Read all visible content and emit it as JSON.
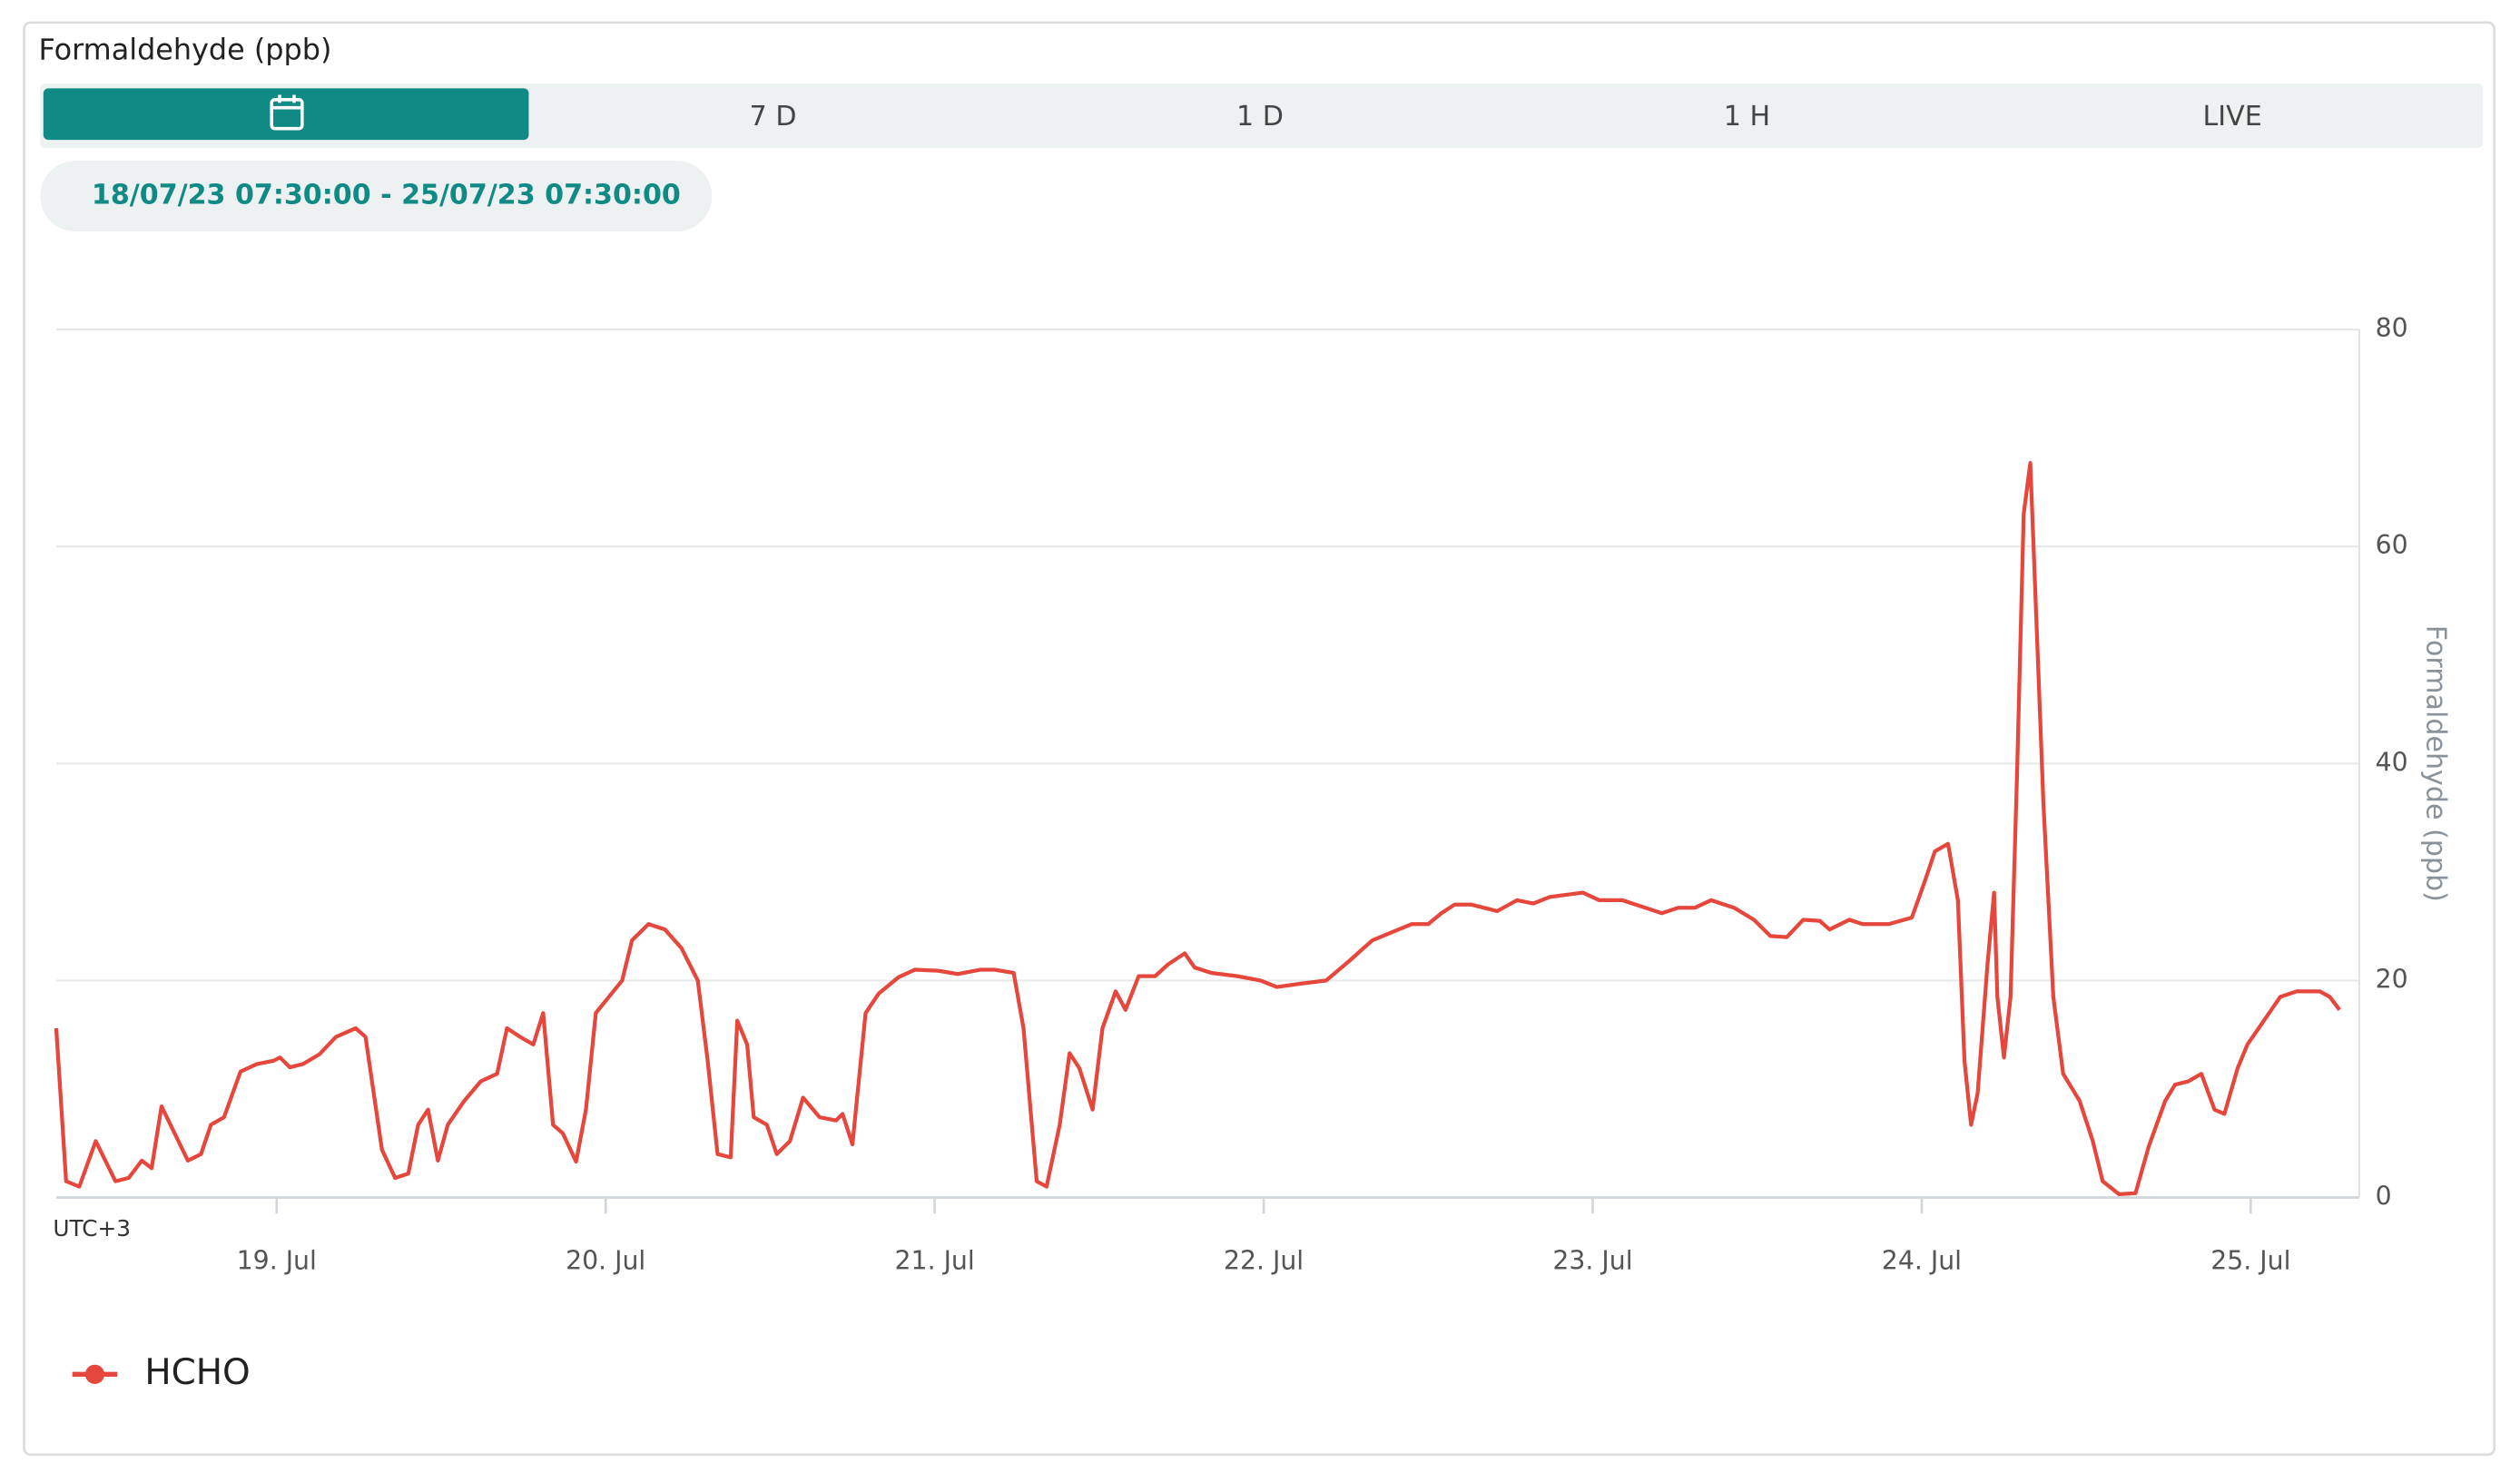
{
  "header": {
    "title": "Formaldehyde (ppb)"
  },
  "tabs": [
    "7 D",
    "1 D",
    "1 H",
    "LIVE"
  ],
  "date_range": "18/07/23 07:30:00 - 25/07/23 07:30:00",
  "chart_data": {
    "type": "line",
    "x_note_label": "UTC+3",
    "y_label": "Formaldehyde (ppb)",
    "x": [
      18.33,
      18.36,
      18.4,
      18.45,
      18.51,
      18.55,
      18.59,
      18.62,
      18.65,
      18.69,
      18.73,
      18.77,
      18.8,
      18.84,
      18.89,
      18.94,
      18.99,
      19.01,
      19.04,
      19.08,
      19.13,
      19.18,
      19.24,
      19.27,
      19.32,
      19.36,
      19.4,
      19.43,
      19.46,
      19.49,
      19.52,
      19.57,
      19.62,
      19.67,
      19.7,
      19.74,
      19.78,
      19.81,
      19.84,
      19.87,
      19.91,
      19.94,
      19.97,
      20.01,
      20.05,
      20.08,
      20.13,
      20.18,
      20.23,
      20.28,
      20.31,
      20.34,
      20.38,
      20.4,
      20.43,
      20.45,
      20.49,
      20.52,
      20.56,
      20.6,
      20.65,
      20.7,
      20.72,
      20.75,
      20.79,
      20.83,
      20.89,
      20.94,
      21.01,
      21.07,
      21.14,
      21.18,
      21.24,
      21.27,
      21.31,
      21.34,
      21.38,
      21.41,
      21.44,
      21.48,
      21.51,
      21.55,
      21.58,
      21.62,
      21.67,
      21.71,
      21.76,
      21.79,
      21.84,
      21.92,
      21.99,
      22.04,
      22.11,
      22.19,
      22.26,
      22.33,
      22.41,
      22.45,
      22.5,
      22.54,
      22.58,
      22.63,
      22.71,
      22.77,
      22.82,
      22.87,
      22.92,
      22.97,
      23.02,
      23.09,
      23.16,
      23.21,
      23.26,
      23.31,
      23.36,
      23.43,
      23.49,
      23.54,
      23.59,
      23.64,
      23.69,
      23.72,
      23.78,
      23.82,
      23.9,
      23.97,
      24.01,
      24.04,
      24.08,
      24.11,
      24.13,
      24.15,
      24.17,
      24.2,
      24.22,
      24.23,
      24.25,
      24.27,
      24.29,
      24.31,
      24.33,
      24.34,
      24.37,
      24.4,
      24.43,
      24.48,
      24.52,
      24.55,
      24.6,
      24.65,
      24.69,
      24.74,
      24.77,
      24.81,
      24.85,
      24.89,
      24.92,
      24.96,
      24.99,
      25.04,
      25.09,
      25.14,
      25.21,
      25.24,
      25.27
    ],
    "series": [
      {
        "name": "HCHO",
        "color": "#e5473c",
        "values": [
          15.6,
          1.5,
          1.0,
          5.2,
          1.5,
          1.8,
          3.4,
          2.7,
          8.4,
          5.9,
          3.4,
          4.0,
          6.7,
          7.4,
          11.6,
          12.3,
          12.6,
          12.9,
          12.0,
          12.3,
          13.2,
          14.8,
          15.6,
          14.8,
          4.4,
          1.8,
          2.2,
          6.7,
          8.1,
          3.4,
          6.7,
          8.9,
          10.7,
          11.4,
          15.6,
          14.8,
          14.1,
          17.0,
          6.7,
          5.9,
          3.3,
          8.1,
          17.0,
          18.5,
          20.0,
          23.7,
          25.2,
          24.7,
          23.0,
          20.0,
          12.6,
          4.0,
          3.7,
          16.3,
          14.1,
          7.4,
          6.7,
          4.0,
          5.2,
          9.2,
          7.4,
          7.1,
          7.7,
          4.9,
          17.0,
          18.8,
          20.3,
          21.0,
          20.9,
          20.6,
          21.0,
          21.0,
          20.7,
          15.6,
          1.5,
          1.0,
          6.7,
          13.3,
          11.9,
          8.1,
          15.6,
          19.0,
          17.3,
          20.4,
          20.4,
          21.5,
          22.5,
          21.2,
          20.7,
          20.4,
          20.0,
          19.4,
          19.7,
          20.0,
          21.8,
          23.7,
          24.7,
          25.2,
          25.2,
          26.2,
          27.0,
          27.0,
          26.4,
          27.4,
          27.1,
          27.7,
          27.9,
          28.1,
          27.4,
          27.4,
          26.7,
          26.2,
          26.7,
          26.7,
          27.4,
          26.7,
          25.6,
          24.1,
          24.0,
          25.6,
          25.5,
          24.7,
          25.6,
          25.2,
          25.2,
          25.8,
          29.2,
          31.9,
          32.6,
          27.4,
          12.6,
          6.7,
          9.6,
          21.5,
          28.1,
          18.5,
          12.9,
          18.5,
          39.3,
          63.0,
          67.7,
          60.0,
          36.3,
          18.5,
          11.4,
          8.9,
          5.2,
          1.5,
          0.3,
          0.4,
          4.7,
          8.9,
          10.4,
          10.7,
          11.4,
          8.1,
          7.7,
          11.9,
          14.1,
          16.3,
          18.5,
          19.0,
          19.0,
          18.5,
          17.3
        ]
      }
    ],
    "xlim": [
      18.33,
      25.33
    ],
    "xticks": [
      {
        "value": 19,
        "label": "19. Jul"
      },
      {
        "value": 20,
        "label": "20. Jul"
      },
      {
        "value": 21,
        "label": "21. Jul"
      },
      {
        "value": 22,
        "label": "22. Jul"
      },
      {
        "value": 23,
        "label": "23. Jul"
      },
      {
        "value": 24,
        "label": "24. Jul"
      },
      {
        "value": 25,
        "label": "25. Jul"
      }
    ],
    "ylim": [
      0,
      80
    ],
    "yticks": [
      0,
      20,
      40,
      60,
      80
    ],
    "grid": true,
    "legend": "bottom-left"
  }
}
